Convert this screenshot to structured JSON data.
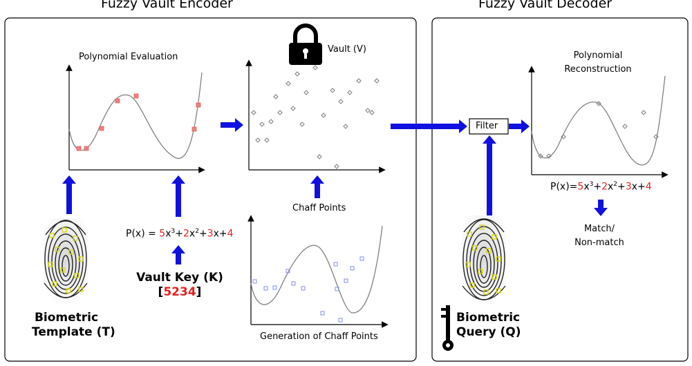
{
  "encoder": {
    "title": "Fuzzy Vault Encoder",
    "polynomial_evaluation_label": "Polynomial Evaluation",
    "vault_label": "Vault (V)",
    "chaff_points_label": "Chaff Points",
    "chaff_generation_label": "Generation of Chaff Points",
    "template_label_line1": "Biometric",
    "template_label_line2": "Template (T)",
    "vault_key_label": "Vault Key (K)",
    "vault_key_open": "[",
    "vault_key_value": "5234",
    "vault_key_close": "]",
    "equation": {
      "prefix": "P(x) = ",
      "c3": "5",
      "t3": "x",
      "e3": "3",
      "plus1": "+",
      "c2": "2",
      "t2": "x",
      "e2": "2",
      "plus2": "+",
      "c1": "3",
      "t1": "x",
      "plus3": "+",
      "c0": "4"
    }
  },
  "decoder": {
    "title": "Fuzzy Vault Decoder",
    "filter_label": "Filter",
    "reconstruction_line1": "Polynomial",
    "reconstruction_line2": "Reconstruction",
    "query_label_line1": "Biometric",
    "query_label_line2": "Query (Q)",
    "result_line1": "Match/",
    "result_line2": "Non-match",
    "equation": {
      "prefix": "P(x)=",
      "c3": "5",
      "t3": "x",
      "e3": "3",
      "plus1": "+",
      "c2": "2",
      "t2": "x",
      "e2": "2",
      "plus2": "+",
      "c1": "3",
      "t1": "x",
      "plus3": "+",
      "c0": "4"
    }
  },
  "colors": {
    "arrow": "#1010e0",
    "genuine_point": "#f08080",
    "vault_point": "#808080",
    "chaff_point": "#8090e0",
    "curve": "#808080",
    "key_highlight": "#e0201e"
  },
  "icons": [
    "padlock-icon",
    "key-icon",
    "fingerprint-icon"
  ]
}
